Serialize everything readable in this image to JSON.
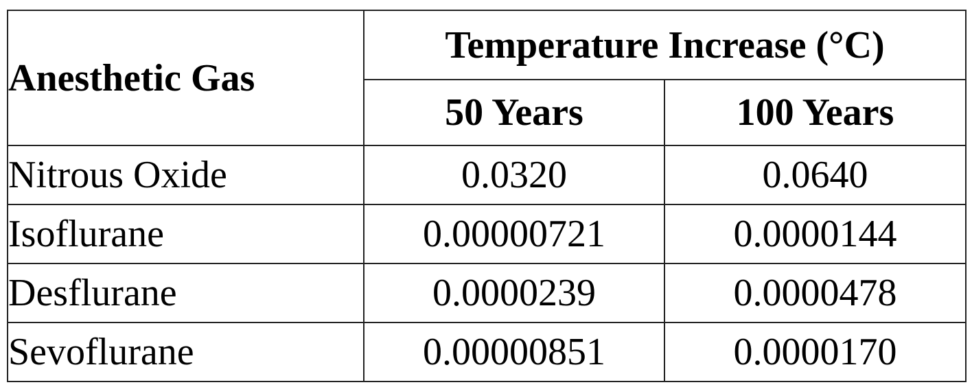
{
  "table": {
    "header": {
      "gas_column": "Anesthetic Gas",
      "group": "Temperature Increase (°C)",
      "periods": [
        "50 Years",
        "100 Years"
      ]
    },
    "rows": [
      {
        "gas": "Nitrous Oxide",
        "y50": "0.0320",
        "y100": "0.0640"
      },
      {
        "gas": "Isoflurane",
        "y50": "0.00000721",
        "y100": "0.0000144"
      },
      {
        "gas": "Desflurane",
        "y50": "0.0000239",
        "y100": "0.0000478"
      },
      {
        "gas": "Sevoflurane",
        "y50": "0.00000851",
        "y100": "0.0000170"
      }
    ]
  }
}
